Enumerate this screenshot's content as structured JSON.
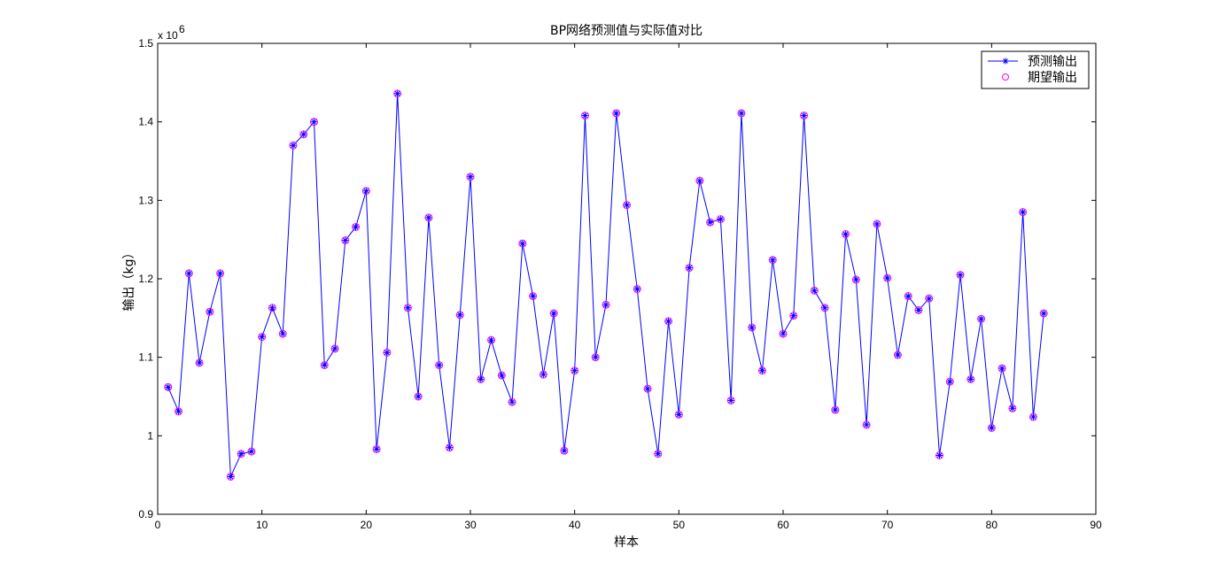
{
  "chart_data": {
    "type": "line",
    "title": "BP网络预测值与实际值对比",
    "xlabel": "样本",
    "ylabel": "输出（kg）",
    "y_multiplier": "x 10",
    "y_multiplier_exp": "6",
    "xlim": [
      0,
      90
    ],
    "ylim": [
      0.9,
      1.5
    ],
    "xticks": [
      0,
      10,
      20,
      30,
      40,
      50,
      60,
      70,
      80,
      90
    ],
    "yticks": [
      0.9,
      1,
      1.1,
      1.2,
      1.3,
      1.4,
      1.5
    ],
    "xtick_labels": [
      "0",
      "10",
      "20",
      "30",
      "40",
      "50",
      "60",
      "70",
      "80",
      "90"
    ],
    "ytick_labels": [
      "0.9",
      "1",
      "1.1",
      "1.2",
      "1.3",
      "1.4",
      "1.5"
    ],
    "grid": false,
    "legend_position": "top-right",
    "x": [
      1,
      2,
      3,
      4,
      5,
      6,
      7,
      8,
      9,
      10,
      11,
      12,
      13,
      14,
      15,
      16,
      17,
      18,
      19,
      20,
      21,
      22,
      23,
      24,
      25,
      26,
      27,
      28,
      29,
      30,
      31,
      32,
      33,
      34,
      35,
      36,
      37,
      38,
      39,
      40,
      41,
      42,
      43,
      44,
      45,
      46,
      47,
      48,
      49,
      50,
      51,
      52,
      53,
      54,
      55,
      56,
      57,
      58,
      59,
      60,
      61,
      62,
      63,
      64,
      65,
      66,
      67,
      68,
      69,
      70,
      71,
      72,
      73,
      74,
      75,
      76,
      77,
      78,
      79,
      80,
      81,
      82,
      83,
      84,
      85
    ],
    "series": [
      {
        "name": "预测输出",
        "color": "#0000ff",
        "marker": "asterisk",
        "line": true,
        "values": [
          1.062,
          1.031,
          1.207,
          1.093,
          1.158,
          1.207,
          0.948,
          0.977,
          0.98,
          1.126,
          1.163,
          1.13,
          1.37,
          1.384,
          1.4,
          1.09,
          1.111,
          1.249,
          1.266,
          1.312,
          0.983,
          1.106,
          1.436,
          1.163,
          1.05,
          1.278,
          1.09,
          0.985,
          1.154,
          1.33,
          1.072,
          1.122,
          1.077,
          1.043,
          1.245,
          1.178,
          1.078,
          1.156,
          0.981,
          1.083,
          1.408,
          1.1,
          1.167,
          1.411,
          1.294,
          1.187,
          1.06,
          0.977,
          1.146,
          1.027,
          1.214,
          1.325,
          1.272,
          1.276,
          1.045,
          1.411,
          1.138,
          1.083,
          1.224,
          1.13,
          1.153,
          1.408,
          1.185,
          1.163,
          1.033,
          1.257,
          1.199,
          1.014,
          1.27,
          1.201,
          1.103,
          1.178,
          1.16,
          1.175,
          0.975,
          1.069,
          1.205,
          1.072,
          1.149,
          1.01,
          1.086,
          1.035,
          1.285,
          1.024,
          1.156
        ]
      },
      {
        "name": "期望输出",
        "color": "#ff00ff",
        "marker": "circle",
        "line": false,
        "values": [
          1.062,
          1.031,
          1.207,
          1.093,
          1.158,
          1.207,
          0.948,
          0.977,
          0.98,
          1.126,
          1.163,
          1.13,
          1.37,
          1.384,
          1.4,
          1.09,
          1.111,
          1.249,
          1.266,
          1.312,
          0.983,
          1.106,
          1.436,
          1.163,
          1.05,
          1.278,
          1.09,
          0.985,
          1.154,
          1.33,
          1.072,
          1.122,
          1.077,
          1.043,
          1.245,
          1.178,
          1.078,
          1.156,
          0.981,
          1.083,
          1.408,
          1.1,
          1.167,
          1.411,
          1.294,
          1.187,
          1.06,
          0.977,
          1.146,
          1.027,
          1.214,
          1.325,
          1.272,
          1.276,
          1.045,
          1.411,
          1.138,
          1.083,
          1.224,
          1.13,
          1.153,
          1.408,
          1.185,
          1.163,
          1.033,
          1.257,
          1.199,
          1.014,
          1.27,
          1.201,
          1.103,
          1.178,
          1.16,
          1.175,
          0.975,
          1.069,
          1.205,
          1.072,
          1.149,
          1.01,
          1.086,
          1.035,
          1.285,
          1.024,
          1.156
        ]
      }
    ]
  }
}
